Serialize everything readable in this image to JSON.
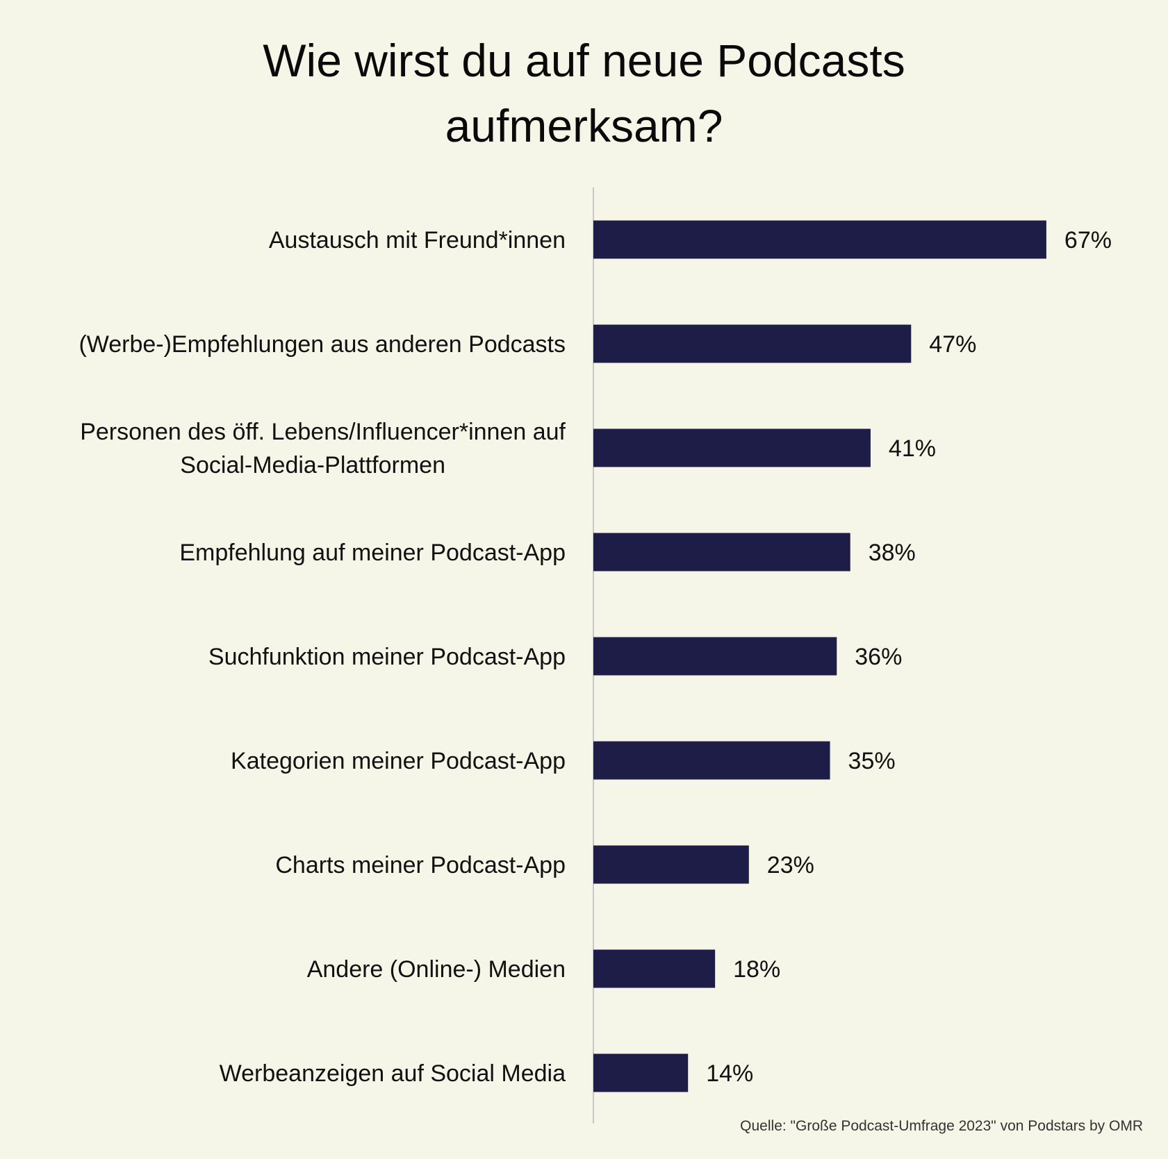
{
  "title_lines": [
    "Wie wirst du auf neue Podcasts",
    "aufmerksam?"
  ],
  "source": "Quelle: \"Große Podcast-Umfrage 2023\" von Podstars by OMR",
  "colors": {
    "background": "#f5f5e8",
    "bar": "#1e1d47",
    "axis": "#c8c8c8",
    "text": "#111111"
  },
  "chart_data": {
    "type": "bar",
    "orientation": "horizontal",
    "categories": [
      [
        "Austausch mit Freund*innen"
      ],
      [
        "(Werbe-)Empfehlungen aus anderen Podcasts"
      ],
      [
        "Personen des öff. Lebens/Influencer*innen auf",
        "Social-Media-Plattformen"
      ],
      [
        "Empfehlung auf meiner Podcast-App"
      ],
      [
        "Suchfunktion meiner Podcast-App"
      ],
      [
        "Kategorien meiner Podcast-App"
      ],
      [
        "Charts meiner Podcast-App"
      ],
      [
        "Andere (Online-) Medien"
      ],
      [
        "Werbeanzeigen auf Social Media"
      ]
    ],
    "values": [
      67,
      47,
      41,
      38,
      36,
      35,
      23,
      18,
      14
    ],
    "value_labels": [
      "67%",
      "47%",
      "41%",
      "38%",
      "36%",
      "35%",
      "23%",
      "18%",
      "14%"
    ],
    "unit": "%",
    "xlim": [
      0,
      100
    ],
    "grid": false,
    "legend": "none"
  }
}
